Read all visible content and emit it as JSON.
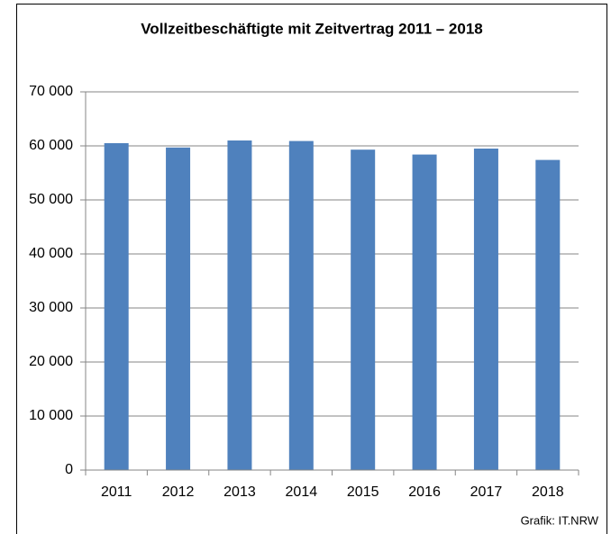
{
  "chart_data": {
    "type": "bar",
    "title": "Vollzeitbeschäftigte mit Zeitvertrag 2011 – 2018",
    "categories": [
      "2011",
      "2012",
      "2013",
      "2014",
      "2015",
      "2016",
      "2017",
      "2018"
    ],
    "values": [
      60500,
      59700,
      61000,
      60900,
      59300,
      58400,
      59500,
      57400
    ],
    "color": "#4f81bd",
    "ylim": [
      0,
      70000
    ],
    "yticks": [
      0,
      {
        "value": 10000,
        "label": "10 000"
      },
      {
        "value": 20000,
        "label": "20 000"
      },
      {
        "value": 30000,
        "label": "30 000"
      },
      {
        "value": 40000,
        "label": "40 000"
      },
      {
        "value": 50000,
        "label": "50 000"
      },
      {
        "value": 60000,
        "label": "60 000"
      },
      {
        "value": 70000,
        "label": "70 000"
      }
    ],
    "grid": true,
    "source": "Grafik: IT.NRW"
  }
}
